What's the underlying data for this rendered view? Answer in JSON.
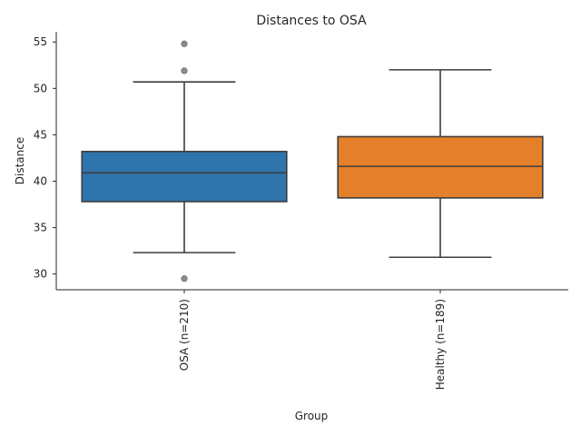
{
  "chart_data": {
    "type": "box",
    "title": "Distances to OSA",
    "xlabel": "Group",
    "ylabel": "Distance",
    "ylim": [
      28.3,
      56.1
    ],
    "yticks": [
      30,
      35,
      40,
      45,
      50,
      55
    ],
    "categories": [
      "OSA (n=210)",
      "Healthy (n=189)"
    ],
    "series": [
      {
        "name": "OSA (n=210)",
        "color": "#2f75ad",
        "whisker_low": 32.3,
        "q1": 37.8,
        "median": 40.9,
        "q3": 43.2,
        "whisker_high": 50.7,
        "outliers": [
          29.5,
          51.9,
          54.8
        ]
      },
      {
        "name": "Healthy (n=189)",
        "color": "#e5802a",
        "whisker_low": 31.8,
        "q1": 38.2,
        "median": 41.6,
        "q3": 44.8,
        "whisker_high": 52.0,
        "outliers": []
      }
    ]
  }
}
